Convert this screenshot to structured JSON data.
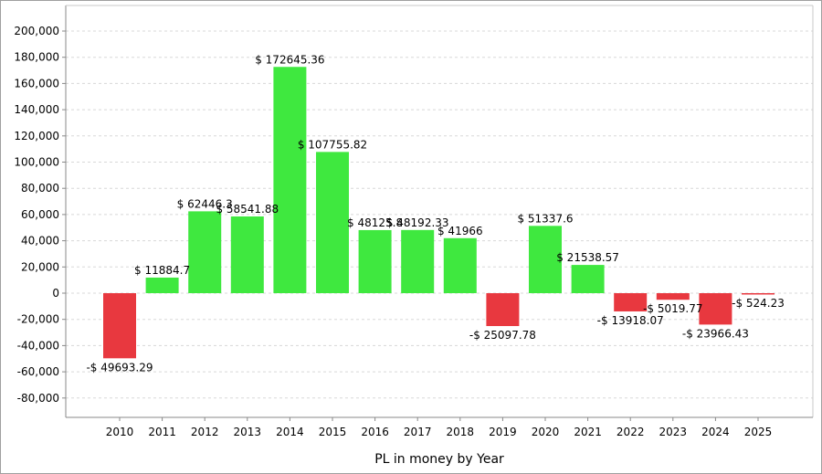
{
  "chart_data": {
    "type": "bar",
    "xlabel": "PL in money by Year",
    "ylabel": "",
    "ylim": [
      -90000,
      210000
    ],
    "yticks": [
      200000,
      180000,
      160000,
      140000,
      120000,
      100000,
      80000,
      60000,
      40000,
      20000,
      0,
      -20000,
      -40000,
      -60000,
      -80000
    ],
    "ytick_labels": [
      "200,000",
      "180,000",
      "160,000",
      "140,000",
      "120,000",
      "100,000",
      "80,000",
      "60,000",
      "40,000",
      "20,000",
      "0",
      "-20,000",
      "-40,000",
      "-60,000",
      "-80,000"
    ],
    "categories": [
      "2010",
      "2011",
      "2012",
      "2013",
      "2014",
      "2015",
      "2016",
      "2017",
      "2018",
      "2019",
      "2020",
      "2021",
      "2022",
      "2023",
      "2024",
      "2025"
    ],
    "values": [
      -49693.29,
      11884.7,
      62446.3,
      58541.88,
      172645.36,
      107755.82,
      48125.8,
      48192.33,
      41966,
      -25097.78,
      51337.6,
      21538.57,
      -13918.07,
      -5019.77,
      -23966.43,
      -524.23
    ],
    "data_labels": [
      "-$ 49693.29",
      "$ 11884.7",
      "$ 62446.3",
      "$ 58541.88",
      "$ 172645.36",
      "$ 107755.82",
      "$ 48125.8",
      "$ 48192.33",
      "$ 41966",
      "-$ 25097.78",
      "$ 51337.6",
      "$ 21538.57",
      "-$ 13918.07",
      "-$ 5019.77",
      "-$ 23966.43",
      "-$ 524.23"
    ],
    "colors": {
      "positive": "#3fe83f",
      "negative": "#e8383f",
      "grid": "#d8d8d8",
      "axis": "#888888"
    },
    "grid": true,
    "legend": "none"
  }
}
